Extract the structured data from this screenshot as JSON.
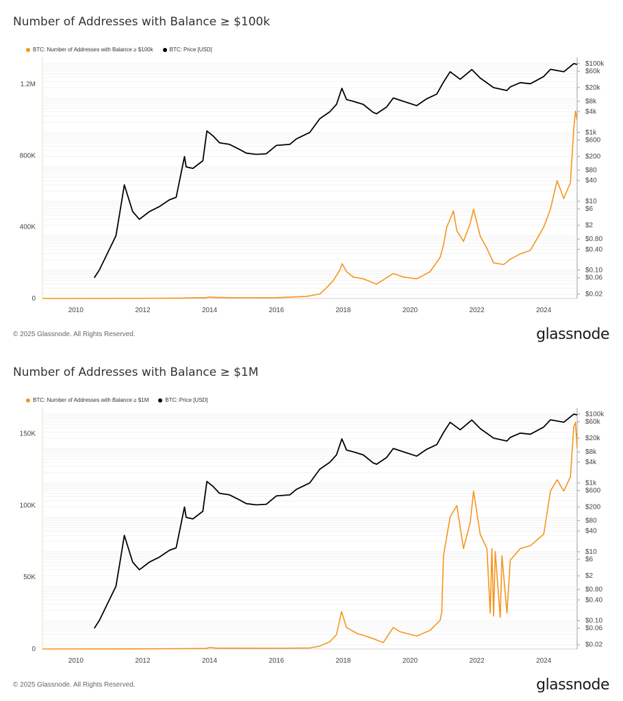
{
  "footer_text": "© 2025 Glassnode. All Rights Reserved.",
  "brand": "glassnode",
  "colors": {
    "addresses": "#f7931a",
    "price": "#000000"
  },
  "chart_data": [
    {
      "type": "line",
      "title": "Number of Addresses with Balance ≥ $100k",
      "legend": [
        "BTC: Number of Addresses with Balance ≥ $100k",
        "BTC: Price [USD]"
      ],
      "x_ticks": [
        "2010",
        "2012",
        "2014",
        "2016",
        "2018",
        "2020",
        "2022",
        "2024"
      ],
      "y_left_ticks": [
        {
          "v": 0,
          "label": "0"
        },
        {
          "v": 400000,
          "label": "400K"
        },
        {
          "v": 800000,
          "label": "800K"
        },
        {
          "v": 1200000,
          "label": "1.2M"
        }
      ],
      "y_left_range": [
        0,
        1350000
      ],
      "y_right_ticks": [
        {
          "v": 0.02,
          "label": "$0.02"
        },
        {
          "v": 0.06,
          "label": "$0.06"
        },
        {
          "v": 0.1,
          "label": "$0.10"
        },
        {
          "v": 0.4,
          "label": "$0.40"
        },
        {
          "v": 0.8,
          "label": "$0.80"
        },
        {
          "v": 2,
          "label": "$2"
        },
        {
          "v": 6,
          "label": "$6"
        },
        {
          "v": 10,
          "label": "$10"
        },
        {
          "v": 40,
          "label": "$40"
        },
        {
          "v": 80,
          "label": "$80"
        },
        {
          "v": 200,
          "label": "$200"
        },
        {
          "v": 600,
          "label": "$600"
        },
        {
          "v": 1000,
          "label": "$1k"
        },
        {
          "v": 4000,
          "label": "$4k"
        },
        {
          "v": 8000,
          "label": "$8k"
        },
        {
          "v": 20000,
          "label": "$20k"
        },
        {
          "v": 60000,
          "label": "$60k"
        },
        {
          "v": 100000,
          "label": "$100k"
        }
      ],
      "x_range": [
        2009.0,
        2025.0
      ],
      "series": [
        {
          "name": "BTC: Number of Addresses with Balance ≥ $100k",
          "axis": "left",
          "x": [
            2009.0,
            2011.0,
            2013.0,
            2013.9,
            2014.0,
            2014.2,
            2015.0,
            2016.0,
            2016.9,
            2017.3,
            2017.5,
            2017.7,
            2017.9,
            2017.97,
            2018.1,
            2018.3,
            2018.6,
            2019.0,
            2019.5,
            2019.8,
            2020.2,
            2020.6,
            2020.9,
            2021.0,
            2021.1,
            2021.3,
            2021.4,
            2021.6,
            2021.8,
            2021.9,
            2022.1,
            2022.3,
            2022.5,
            2022.8,
            2023.0,
            2023.3,
            2023.6,
            2024.0,
            2024.2,
            2024.4,
            2024.6,
            2024.8,
            2024.9,
            2024.95,
            2025.0
          ],
          "y": [
            0,
            500,
            1500,
            5000,
            8000,
            6000,
            4000,
            4500,
            12000,
            25000,
            60000,
            100000,
            160000,
            195000,
            150000,
            120000,
            110000,
            80000,
            140000,
            120000,
            110000,
            150000,
            230000,
            300000,
            400000,
            490000,
            380000,
            320000,
            420000,
            500000,
            350000,
            280000,
            200000,
            190000,
            220000,
            250000,
            270000,
            400000,
            500000,
            660000,
            560000,
            650000,
            950000,
            1050000,
            1000000
          ]
        },
        {
          "name": "BTC: Price [USD]",
          "axis": "right",
          "x": [
            2010.55,
            2010.7,
            2010.9,
            2011.2,
            2011.4,
            2011.45,
            2011.7,
            2011.9,
            2012.2,
            2012.5,
            2012.8,
            2013.0,
            2013.25,
            2013.3,
            2013.5,
            2013.8,
            2013.92,
            2014.1,
            2014.3,
            2014.6,
            2014.9,
            2015.1,
            2015.4,
            2015.7,
            2016.0,
            2016.4,
            2016.6,
            2017.0,
            2017.3,
            2017.6,
            2017.8,
            2017.96,
            2018.1,
            2018.3,
            2018.6,
            2018.9,
            2019.0,
            2019.3,
            2019.5,
            2019.8,
            2020.2,
            2020.5,
            2020.8,
            2021.0,
            2021.2,
            2021.5,
            2021.85,
            2022.1,
            2022.5,
            2022.9,
            2023.0,
            2023.3,
            2023.6,
            2024.0,
            2024.2,
            2024.6,
            2024.9,
            2025.0
          ],
          "y": [
            0.06,
            0.1,
            0.25,
            1,
            15,
            30,
            5,
            3,
            5,
            7,
            11,
            13,
            200,
            100,
            90,
            150,
            1100,
            800,
            500,
            450,
            320,
            250,
            230,
            240,
            420,
            450,
            650,
            1000,
            2500,
            4000,
            6500,
            19000,
            9000,
            8000,
            6500,
            3800,
            3500,
            5500,
            10000,
            8000,
            6000,
            9500,
            13000,
            29000,
            58000,
            35000,
            67000,
            38000,
            20000,
            16500,
            21000,
            28000,
            26000,
            42000,
            68000,
            58000,
            100000,
            95000
          ]
        }
      ]
    },
    {
      "type": "line",
      "title": "Number of Addresses with Balance ≥ $1M",
      "legend": [
        "BTC: Number of Addresses with Balance ≥ $1M",
        "BTC: Price [USD]"
      ],
      "x_ticks": [
        "2010",
        "2012",
        "2014",
        "2016",
        "2018",
        "2020",
        "2022",
        "2024"
      ],
      "y_left_ticks": [
        {
          "v": 0,
          "label": "0"
        },
        {
          "v": 50000,
          "label": "50K"
        },
        {
          "v": 100000,
          "label": "100K"
        },
        {
          "v": 150000,
          "label": "150K"
        }
      ],
      "y_left_range": [
        0,
        168000
      ],
      "y_right_ticks": [
        {
          "v": 0.02,
          "label": "$0.02"
        },
        {
          "v": 0.06,
          "label": "$0.06"
        },
        {
          "v": 0.1,
          "label": "$0.10"
        },
        {
          "v": 0.4,
          "label": "$0.40"
        },
        {
          "v": 0.8,
          "label": "$0.80"
        },
        {
          "v": 2,
          "label": "$2"
        },
        {
          "v": 6,
          "label": "$6"
        },
        {
          "v": 10,
          "label": "$10"
        },
        {
          "v": 40,
          "label": "$40"
        },
        {
          "v": 80,
          "label": "$80"
        },
        {
          "v": 200,
          "label": "$200"
        },
        {
          "v": 600,
          "label": "$600"
        },
        {
          "v": 1000,
          "label": "$1k"
        },
        {
          "v": 4000,
          "label": "$4k"
        },
        {
          "v": 8000,
          "label": "$8k"
        },
        {
          "v": 20000,
          "label": "$20k"
        },
        {
          "v": 60000,
          "label": "$60k"
        },
        {
          "v": 100000,
          "label": "$100k"
        }
      ],
      "x_range": [
        2009.0,
        2025.0
      ],
      "series": [
        {
          "name": "BTC: Number of Addresses with Balance ≥ $1M",
          "axis": "left",
          "x": [
            2009.0,
            2012.0,
            2013.9,
            2014.0,
            2014.2,
            2016.0,
            2017.0,
            2017.3,
            2017.6,
            2017.8,
            2017.95,
            2018.1,
            2018.4,
            2018.8,
            2019.2,
            2019.5,
            2019.7,
            2020.2,
            2020.6,
            2020.9,
            2020.95,
            2021.0,
            2021.2,
            2021.4,
            2021.6,
            2021.8,
            2021.9,
            2022.1,
            2022.3,
            2022.4,
            2022.45,
            2022.5,
            2022.55,
            2022.7,
            2022.75,
            2022.9,
            2023.0,
            2023.3,
            2023.6,
            2024.0,
            2024.2,
            2024.4,
            2024.6,
            2024.8,
            2024.9,
            2024.95,
            2025.0
          ],
          "y": [
            0,
            100,
            400,
            1000,
            600,
            500,
            700,
            2000,
            5000,
            10000,
            26000,
            15000,
            11000,
            8000,
            4500,
            15000,
            12000,
            9000,
            13000,
            20000,
            26000,
            65000,
            92000,
            100000,
            70000,
            88000,
            110000,
            80000,
            70000,
            25000,
            70000,
            23000,
            68000,
            22000,
            65000,
            25000,
            62000,
            70000,
            72000,
            80000,
            110000,
            118000,
            110000,
            120000,
            155000,
            158000,
            140000
          ]
        },
        {
          "name": "BTC: Price [USD]",
          "axis": "right",
          "x": [
            2010.55,
            2010.7,
            2010.9,
            2011.2,
            2011.4,
            2011.45,
            2011.7,
            2011.9,
            2012.2,
            2012.5,
            2012.8,
            2013.0,
            2013.25,
            2013.3,
            2013.5,
            2013.8,
            2013.92,
            2014.1,
            2014.3,
            2014.6,
            2014.9,
            2015.1,
            2015.4,
            2015.7,
            2016.0,
            2016.4,
            2016.6,
            2017.0,
            2017.3,
            2017.6,
            2017.8,
            2017.96,
            2018.1,
            2018.3,
            2018.6,
            2018.9,
            2019.0,
            2019.3,
            2019.5,
            2019.8,
            2020.2,
            2020.5,
            2020.8,
            2021.0,
            2021.2,
            2021.5,
            2021.85,
            2022.1,
            2022.5,
            2022.9,
            2023.0,
            2023.3,
            2023.6,
            2024.0,
            2024.2,
            2024.6,
            2024.9,
            2025.0
          ],
          "y": [
            0.06,
            0.1,
            0.25,
            1,
            15,
            30,
            5,
            3,
            5,
            7,
            11,
            13,
            200,
            100,
            90,
            150,
            1100,
            800,
            500,
            450,
            320,
            250,
            230,
            240,
            420,
            450,
            650,
            1000,
            2500,
            4000,
            6500,
            19000,
            9000,
            8000,
            6500,
            3800,
            3500,
            5500,
            10000,
            8000,
            6000,
            9500,
            13000,
            29000,
            58000,
            35000,
            67000,
            38000,
            20000,
            16500,
            21000,
            28000,
            26000,
            42000,
            68000,
            58000,
            100000,
            95000
          ]
        }
      ]
    }
  ]
}
